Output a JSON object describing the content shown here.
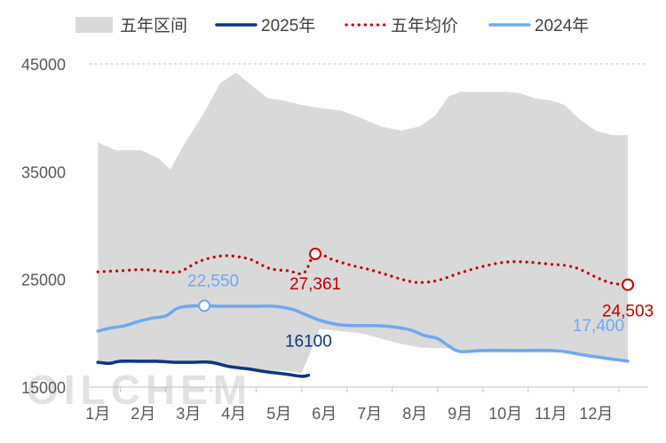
{
  "chart_data": {
    "type": "line",
    "x_categories": [
      "1月",
      "2月",
      "3月",
      "4月",
      "5月",
      "6月",
      "7月",
      "8月",
      "9月",
      "10月",
      "11月",
      "12月"
    ],
    "ylim": [
      15000,
      45000
    ],
    "yticks": [
      15000,
      25000,
      35000,
      45000
    ],
    "ytick_labels": [
      "15000",
      "25000",
      "35000",
      "45000"
    ],
    "grid_top_dashed": true,
    "legend_position": "top",
    "legend": [
      {
        "label": "五年区间",
        "kind": "area",
        "color": "#d9d9d9"
      },
      {
        "label": "2025年",
        "kind": "line",
        "color": "#0d3580"
      },
      {
        "label": "五年均价",
        "kind": "dotted",
        "color": "#c00000"
      },
      {
        "label": "2024年",
        "kind": "line",
        "color": "#6fa8f0"
      }
    ],
    "range_band": {
      "name": "五年区间",
      "x": [
        1.0,
        1.4,
        1.95,
        2.35,
        2.6,
        2.9,
        3.35,
        3.7,
        4.05,
        4.4,
        4.75,
        5.1,
        5.5,
        5.9,
        6.35,
        6.8,
        7.25,
        7.7,
        8.1,
        8.45,
        8.75,
        9.0,
        9.5,
        10.0,
        10.3,
        10.65,
        11.0,
        11.3,
        11.65,
        12.0,
        12.35,
        12.7
      ],
      "upper": [
        37700,
        37000,
        37000,
        36200,
        35200,
        37500,
        40500,
        43200,
        44200,
        43000,
        41800,
        41600,
        41200,
        40900,
        40700,
        40000,
        39200,
        38800,
        39200,
        40200,
        42000,
        42400,
        42400,
        42400,
        42300,
        41800,
        41600,
        41200,
        39800,
        38800,
        38400,
        38400
      ],
      "lower": [
        17300,
        17200,
        17200,
        17200,
        17200,
        17200,
        17200,
        17000,
        16900,
        16700,
        16500,
        16500,
        16300,
        20400,
        20200,
        20000,
        19500,
        19000,
        18700,
        18600,
        18600,
        18300,
        18200,
        18200,
        18200,
        18200,
        18200,
        18200,
        18000,
        17700,
        17500,
        17300
      ]
    },
    "series": [
      {
        "name": "2025年",
        "color": "#0d3580",
        "x": [
          1.0,
          1.25,
          1.5,
          1.9,
          2.3,
          2.7,
          3.1,
          3.5,
          3.9,
          4.3,
          4.75,
          5.15,
          5.5,
          5.65
        ],
        "y": [
          17300,
          17200,
          17400,
          17400,
          17400,
          17300,
          17300,
          17300,
          16900,
          16700,
          16400,
          16200,
          16000,
          16100
        ],
        "labels": [
          {
            "text": "16100",
            "at_index": 13
          }
        ]
      },
      {
        "name": "五年均价",
        "color": "#c00000",
        "style": "dotted",
        "x": [
          1.0,
          1.5,
          2.0,
          2.5,
          2.8,
          3.2,
          3.5,
          3.8,
          4.1,
          4.4,
          4.8,
          5.2,
          5.55,
          5.8,
          6.2,
          6.6,
          7.0,
          7.4,
          7.8,
          8.1,
          8.5,
          9.0,
          9.5,
          10.0,
          10.5,
          11.0,
          11.3,
          11.6,
          12.0,
          12.3,
          12.6,
          12.7
        ],
        "y": [
          25700,
          25800,
          25900,
          25700,
          25700,
          26600,
          27000,
          27200,
          27100,
          26800,
          26000,
          25800,
          25600,
          27361,
          26800,
          26300,
          25900,
          25400,
          24900,
          24700,
          24900,
          25600,
          26200,
          26600,
          26600,
          26400,
          26300,
          26000,
          25200,
          24700,
          24500,
          24503
        ],
        "labels": [
          {
            "text": "27,361",
            "at_index": 13
          },
          {
            "text": "24,503",
            "at_index": 31
          }
        ],
        "markers_at_index": [
          13,
          31
        ]
      },
      {
        "name": "2024年",
        "color": "#6fa8f0",
        "x": [
          1.0,
          1.3,
          1.6,
          1.9,
          2.2,
          2.5,
          2.75,
          3.0,
          3.35,
          3.7,
          4.1,
          4.5,
          4.9,
          5.3,
          5.6,
          5.9,
          6.3,
          6.7,
          7.1,
          7.5,
          7.9,
          8.2,
          8.5,
          8.75,
          9.0,
          9.5,
          10.0,
          10.5,
          11.0,
          11.3,
          11.7,
          12.0,
          12.35,
          12.7
        ],
        "y": [
          20200,
          20500,
          20700,
          21100,
          21400,
          21600,
          22300,
          22500,
          22550,
          22500,
          22500,
          22500,
          22500,
          22200,
          21700,
          21200,
          20800,
          20700,
          20700,
          20600,
          20300,
          19800,
          19500,
          18800,
          18300,
          18400,
          18400,
          18400,
          18400,
          18300,
          18000,
          17800,
          17600,
          17400
        ],
        "labels": [
          {
            "text": "22,550",
            "at_index": 8
          },
          {
            "text": "17,400",
            "at_index": 33
          }
        ],
        "markers_at_index": [
          8
        ]
      }
    ]
  },
  "watermark": {
    "text": "OILCHEM"
  }
}
